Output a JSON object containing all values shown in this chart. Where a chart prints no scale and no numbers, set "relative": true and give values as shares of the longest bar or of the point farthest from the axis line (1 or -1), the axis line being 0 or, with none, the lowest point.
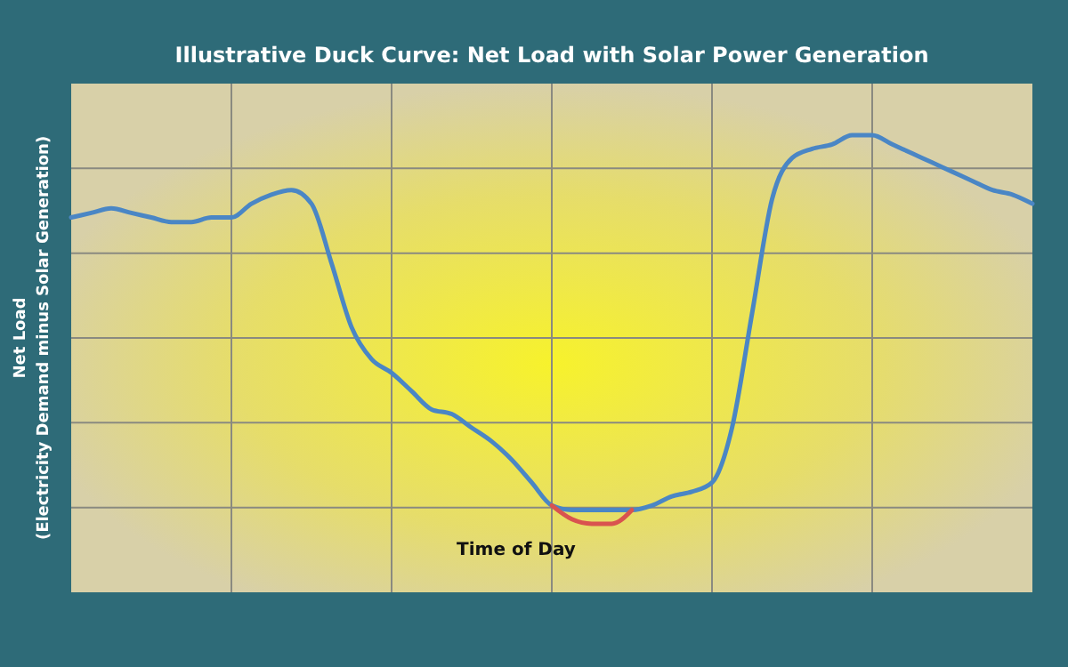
{
  "chart_data": {
    "type": "line",
    "title": "Illustrative Duck Curve: Net Load with Solar Power Generation",
    "xlabel": "Time of Day",
    "ylabel": "Net Load\n(Electricity Demand minus Solar Generation)",
    "relative": true,
    "grid": true,
    "categories": [
      null,
      null,
      null,
      null,
      null,
      null,
      null,
      null,
      null,
      null,
      null,
      null,
      null,
      null,
      null,
      null,
      null,
      null,
      null,
      null,
      null,
      null,
      null,
      null,
      null,
      null,
      null,
      null,
      null,
      null,
      null,
      null,
      null,
      null,
      null,
      null,
      null,
      null,
      null,
      null,
      null,
      null,
      null,
      null,
      null,
      null,
      null,
      null,
      null
    ],
    "series": [
      {
        "color": "#4a86c5",
        "values": [
          0.82,
          0.83,
          0.84,
          0.83,
          0.82,
          0.81,
          0.81,
          0.82,
          0.82,
          0.85,
          0.87,
          0.88,
          0.85,
          0.72,
          0.58,
          0.51,
          0.48,
          0.44,
          0.4,
          0.39,
          0.36,
          0.33,
          0.29,
          0.24,
          0.19,
          0.18,
          0.18,
          0.18,
          0.18,
          0.19,
          0.21,
          0.22,
          0.24,
          0.36,
          0.61,
          0.86,
          0.95,
          0.97,
          0.98,
          1.0,
          1.0,
          0.98,
          0.96,
          0.94,
          0.92,
          0.9,
          0.88,
          0.87,
          0.85
        ]
      },
      {
        "color": "#d9534f",
        "values": [
          null,
          null,
          null,
          null,
          null,
          null,
          null,
          null,
          null,
          null,
          null,
          null,
          null,
          null,
          null,
          null,
          null,
          null,
          null,
          null,
          null,
          null,
          null,
          null,
          0.19,
          0.16,
          0.15,
          0.15,
          0.18,
          null,
          null,
          null,
          null,
          null,
          null,
          null,
          null,
          null,
          null,
          null,
          null,
          null,
          null,
          null,
          null,
          null,
          null,
          null,
          null
        ]
      }
    ]
  }
}
